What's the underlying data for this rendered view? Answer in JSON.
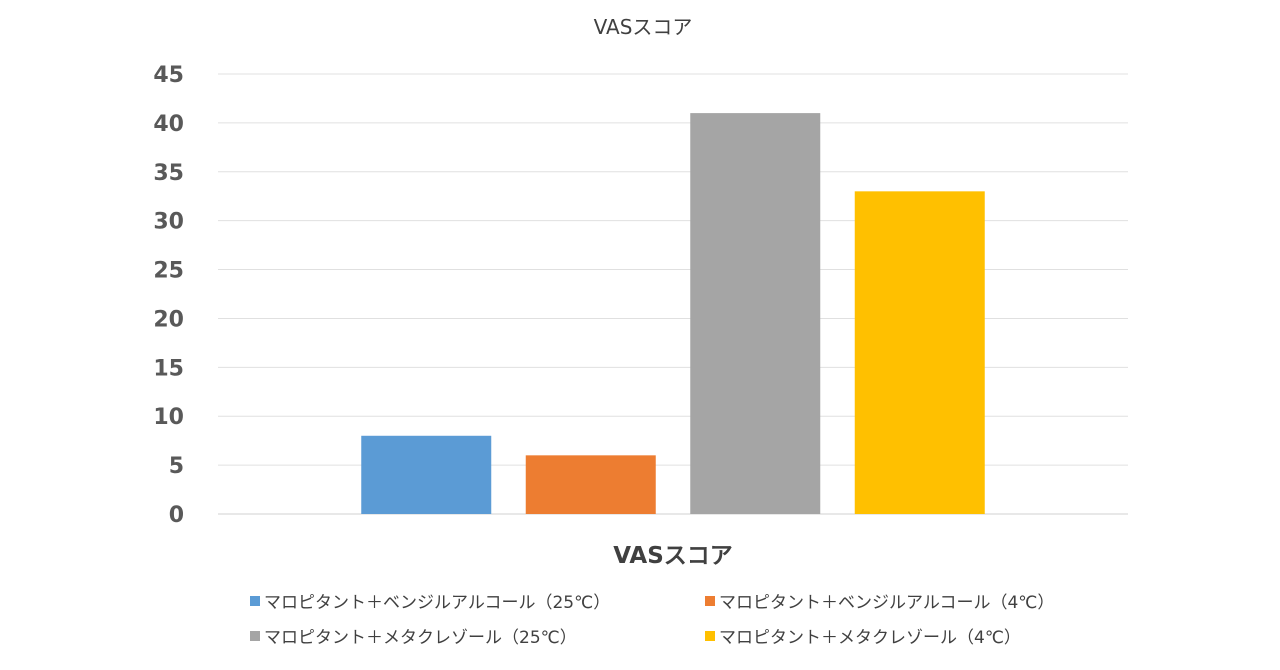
{
  "chart_data": {
    "type": "bar",
    "title": "VASスコア",
    "xlabel": "VASスコア",
    "ylabel": "",
    "categories": [
      "VASスコア"
    ],
    "ylim": [
      0,
      45
    ],
    "yticks": [
      0,
      5,
      10,
      15,
      20,
      25,
      30,
      35,
      40,
      45
    ],
    "grid": true,
    "legend_position": "bottom",
    "series": [
      {
        "name": "マロピタント＋ベンジルアルコール（25℃）",
        "values": [
          8
        ],
        "color": "#5b9bd5"
      },
      {
        "name": "マロピタント＋ベンジルアルコール（4℃）",
        "values": [
          6
        ],
        "color": "#ed7d31"
      },
      {
        "name": "マロピタント＋メタクレゾール（25℃）",
        "values": [
          41
        ],
        "color": "#a5a5a5"
      },
      {
        "name": "マロピタント＋メタクレゾール（4℃）",
        "values": [
          33
        ],
        "color": "#ffc000"
      }
    ]
  }
}
